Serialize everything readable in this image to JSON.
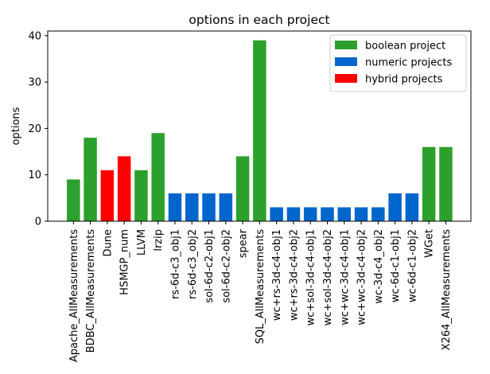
{
  "chart_data": {
    "type": "bar",
    "title": "options in each project",
    "xlabel": "",
    "ylabel": "options",
    "ylim": [
      0,
      41
    ],
    "yticks": [
      0,
      10,
      20,
      30,
      40
    ],
    "grid": false,
    "legend_position": "top-right",
    "categories": [
      "Apache_AllMeasurements",
      "BDBC_AllMeasurements",
      "Dune",
      "HSMGP_num",
      "LLVM",
      "lrzip",
      "rs-6d-c3_obj1",
      "rs-6d-c3_obj2",
      "sol-6d-c2-obj1",
      "sol-6d-c2-obj2",
      "spear",
      "SQL_AllMeasurements",
      "wc+rs-3d-c4-obj1",
      "wc+rs-3d-c4-obj2",
      "wc+sol-3d-c4-obj1",
      "wc+sol-3d-c4-obj2",
      "wc+wc-3d-c4-obj1",
      "wc+wc-3d-c4-obj2",
      "wc-3d-c4_obj2",
      "wc-6d-c1-obj1",
      "wc-6d-c1-obj2",
      "WGet",
      "X264_AllMeasurements"
    ],
    "values": [
      9,
      18,
      11,
      14,
      11,
      19,
      6,
      6,
      6,
      6,
      14,
      39,
      3,
      3,
      3,
      3,
      3,
      3,
      3,
      6,
      6,
      16,
      16
    ],
    "bar_groups": [
      "boolean",
      "boolean",
      "hybrid",
      "hybrid",
      "boolean",
      "boolean",
      "numeric",
      "numeric",
      "numeric",
      "numeric",
      "boolean",
      "boolean",
      "numeric",
      "numeric",
      "numeric",
      "numeric",
      "numeric",
      "numeric",
      "numeric",
      "numeric",
      "numeric",
      "boolean",
      "boolean"
    ],
    "legend": [
      {
        "key": "boolean",
        "label": "boolean project",
        "color": "#2ca02c"
      },
      {
        "key": "numeric",
        "label": "numeric projects",
        "color": "#0066cc"
      },
      {
        "key": "hybrid",
        "label": "hybrid projects",
        "color": "#ff0000"
      }
    ]
  }
}
